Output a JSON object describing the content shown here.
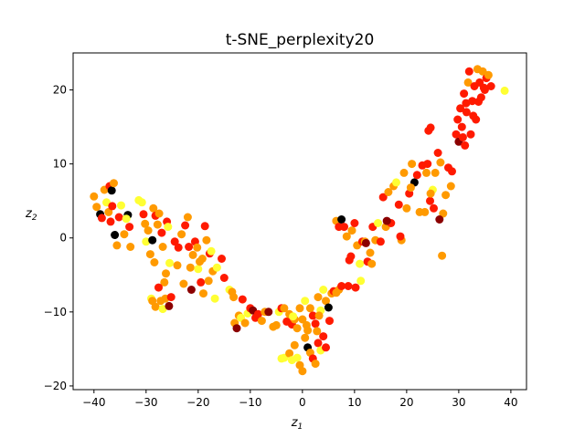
{
  "chart_data": {
    "type": "scatter",
    "title": "t-SNE_perplexity20",
    "xlabel": "z",
    "xlabel_sub": "1",
    "ylabel": "z",
    "ylabel_sub": "2",
    "xlim": [
      -44,
      43
    ],
    "ylim": [
      -20.5,
      25
    ],
    "xticks": [
      -40,
      -30,
      -20,
      -10,
      0,
      10,
      20,
      30,
      40
    ],
    "yticks": [
      -20,
      -10,
      0,
      10,
      20
    ],
    "grid": false,
    "colormap": "hot",
    "palette": {
      "black": "#000000",
      "darkred": "#8b0000",
      "red": "#ff1a00",
      "orange": "#ff9a00",
      "yellow": "#ffff33"
    },
    "points": [
      [
        -40,
        5.6,
        "orange"
      ],
      [
        -39.5,
        4.2,
        "orange"
      ],
      [
        -38.8,
        3.2,
        "black"
      ],
      [
        -38.5,
        2.7,
        "red"
      ],
      [
        -38,
        6.5,
        "orange"
      ],
      [
        -37.6,
        4.8,
        "yellow"
      ],
      [
        -37.2,
        3.5,
        "orange"
      ],
      [
        -37,
        7,
        "red"
      ],
      [
        -36.6,
        6.4,
        "black"
      ],
      [
        -36.8,
        2.2,
        "red"
      ],
      [
        -36.5,
        4.3,
        "red"
      ],
      [
        -36.2,
        7.4,
        "orange"
      ],
      [
        -36,
        0.4,
        "black"
      ],
      [
        -35.6,
        -1,
        "orange"
      ],
      [
        -35.2,
        2.8,
        "red"
      ],
      [
        -34.8,
        4.4,
        "yellow"
      ],
      [
        -34.2,
        0.5,
        "orange"
      ],
      [
        -33.5,
        3.1,
        "black"
      ],
      [
        -33.2,
        1.5,
        "red"
      ],
      [
        -33,
        -1.2,
        "orange"
      ],
      [
        -31.4,
        5.1,
        "yellow"
      ],
      [
        -30.8,
        4.8,
        "yellow"
      ],
      [
        -30.5,
        3.2,
        "red"
      ],
      [
        -30.2,
        1.9,
        "orange"
      ],
      [
        -30,
        -0.5,
        "yellow"
      ],
      [
        -29.6,
        1,
        "orange"
      ],
      [
        -29.2,
        -2.2,
        "orange"
      ],
      [
        -28.8,
        -0.3,
        "black"
      ],
      [
        -28.6,
        4,
        "orange"
      ],
      [
        -28.4,
        -3.3,
        "orange"
      ],
      [
        -28.2,
        3,
        "red"
      ],
      [
        -27.8,
        1.8,
        "orange"
      ],
      [
        -27.5,
        3.3,
        "orange"
      ],
      [
        -27,
        0.7,
        "red"
      ],
      [
        -26.8,
        -1.2,
        "orange"
      ],
      [
        -26.5,
        -6,
        "orange"
      ],
      [
        -26.2,
        -4.8,
        "orange"
      ],
      [
        -26,
        2.2,
        "red"
      ],
      [
        -25.8,
        1.5,
        "yellow"
      ],
      [
        -25.5,
        -3.4,
        "yellow"
      ],
      [
        -29,
        -8.2,
        "yellow"
      ],
      [
        -28.8,
        -8.5,
        "orange"
      ],
      [
        -28.2,
        -9.3,
        "orange"
      ],
      [
        -27.6,
        -6.7,
        "red"
      ],
      [
        -27.2,
        -8.5,
        "orange"
      ],
      [
        -26.8,
        -9.6,
        "yellow"
      ],
      [
        -26.3,
        -8.2,
        "orange"
      ],
      [
        -25.6,
        -9.2,
        "darkred"
      ],
      [
        -25.2,
        -8,
        "red"
      ],
      [
        -24.5,
        -0.5,
        "red"
      ],
      [
        -24,
        -3.7,
        "orange"
      ],
      [
        -23.8,
        -1.3,
        "red"
      ],
      [
        -23.2,
        0.5,
        "orange"
      ],
      [
        -22.5,
        1.7,
        "red"
      ],
      [
        -22,
        2.8,
        "orange"
      ],
      [
        -21.8,
        -1.2,
        "red"
      ],
      [
        -21.5,
        -4,
        "orange"
      ],
      [
        -21.3,
        -7,
        "darkred"
      ],
      [
        -21,
        -2.3,
        "orange"
      ],
      [
        -20.6,
        -0.5,
        "red"
      ],
      [
        -20.2,
        -1.3,
        "orange"
      ],
      [
        -20,
        -4.2,
        "yellow"
      ],
      [
        -19.7,
        -3.2,
        "orange"
      ],
      [
        -19.5,
        -6,
        "red"
      ],
      [
        -19.2,
        -2.8,
        "orange"
      ],
      [
        -19,
        -7.5,
        "orange"
      ],
      [
        -18.7,
        1.6,
        "red"
      ],
      [
        -18.4,
        -0.3,
        "orange"
      ],
      [
        -18,
        -5.8,
        "orange"
      ],
      [
        -17.8,
        -2.1,
        "red"
      ],
      [
        -17.5,
        -1.8,
        "yellow"
      ],
      [
        -17.2,
        -4.5,
        "orange"
      ],
      [
        -16.8,
        -8.2,
        "yellow"
      ],
      [
        -16.4,
        -4,
        "yellow"
      ],
      [
        -15.5,
        -2.8,
        "red"
      ],
      [
        -15,
        -5.4,
        "red"
      ],
      [
        -14,
        -7,
        "yellow"
      ],
      [
        -13.5,
        -7.3,
        "orange"
      ],
      [
        -13,
        -11.5,
        "orange"
      ],
      [
        -12.6,
        -12.2,
        "darkred"
      ],
      [
        -12.2,
        -10.5,
        "orange"
      ],
      [
        -11.8,
        -10.8,
        "yellow"
      ],
      [
        -11.5,
        -8.3,
        "red"
      ],
      [
        -11,
        -11.5,
        "orange"
      ],
      [
        -10.5,
        -10.2,
        "yellow"
      ],
      [
        -10,
        -9.5,
        "red"
      ],
      [
        -9.5,
        -9.8,
        "darkred"
      ],
      [
        -9,
        -10.8,
        "red"
      ],
      [
        -8.5,
        -10.3,
        "red"
      ],
      [
        -7.2,
        -10,
        "orange"
      ],
      [
        -6.5,
        -10,
        "darkred"
      ],
      [
        -5.6,
        -12,
        "orange"
      ],
      [
        -5,
        -11.8,
        "orange"
      ],
      [
        -4.5,
        -10,
        "yellow"
      ],
      [
        -4,
        -9.5,
        "red"
      ],
      [
        -3.5,
        -9.5,
        "orange"
      ],
      [
        -3,
        -11.3,
        "red"
      ],
      [
        -2.5,
        -10.3,
        "orange"
      ],
      [
        -2,
        -11.7,
        "red"
      ],
      [
        -1.5,
        -11,
        "orange"
      ],
      [
        -1,
        -12.2,
        "orange"
      ],
      [
        -0.5,
        -9.5,
        "orange"
      ],
      [
        0,
        -11,
        "orange"
      ],
      [
        0.5,
        -8.5,
        "yellow"
      ],
      [
        1,
        -12.5,
        "orange"
      ],
      [
        1.5,
        -9.5,
        "orange"
      ],
      [
        2,
        -10.5,
        "red"
      ],
      [
        2.5,
        -11.6,
        "red"
      ],
      [
        3,
        -8,
        "orange"
      ],
      [
        3.5,
        -9.8,
        "yellow"
      ],
      [
        4,
        -7,
        "yellow"
      ],
      [
        4.5,
        -8.5,
        "orange"
      ],
      [
        5,
        -9.4,
        "black"
      ],
      [
        5.6,
        -7.5,
        "orange"
      ],
      [
        6,
        -7.2,
        "red"
      ],
      [
        6.5,
        -7.4,
        "orange"
      ],
      [
        7,
        -7,
        "orange"
      ],
      [
        7.5,
        -6.5,
        "red"
      ],
      [
        -4,
        -16.3,
        "yellow"
      ],
      [
        -3.5,
        -16.2,
        "yellow"
      ],
      [
        -2.5,
        -15.6,
        "orange"
      ],
      [
        -2,
        -16.5,
        "yellow"
      ],
      [
        -1.5,
        -14.5,
        "orange"
      ],
      [
        -1,
        -16.2,
        "yellow"
      ],
      [
        -0.5,
        -17.2,
        "orange"
      ],
      [
        0,
        -18,
        "orange"
      ],
      [
        0.5,
        -13.5,
        "orange"
      ],
      [
        1,
        -14.8,
        "black"
      ],
      [
        1.5,
        -15.5,
        "orange"
      ],
      [
        2,
        -16.3,
        "red"
      ],
      [
        2.5,
        -17,
        "orange"
      ],
      [
        3,
        -14.2,
        "red"
      ],
      [
        3.5,
        -15.2,
        "yellow"
      ],
      [
        4,
        -13.3,
        "red"
      ],
      [
        4.5,
        -14.8,
        "red"
      ],
      [
        0.8,
        -11.8,
        "orange"
      ],
      [
        3.2,
        -10.5,
        "orange"
      ],
      [
        5.2,
        -11.2,
        "red"
      ],
      [
        -1.8,
        -10.6,
        "yellow"
      ],
      [
        2.8,
        -12.6,
        "orange"
      ],
      [
        6.5,
        2.3,
        "orange"
      ],
      [
        7,
        1.5,
        "red"
      ],
      [
        7.5,
        2.5,
        "black"
      ],
      [
        8,
        1.5,
        "red"
      ],
      [
        8.5,
        0.2,
        "orange"
      ],
      [
        9,
        -3,
        "red"
      ],
      [
        9.5,
        1,
        "orange"
      ],
      [
        10,
        2,
        "red"
      ],
      [
        10.5,
        -1,
        "orange"
      ],
      [
        11,
        -3.5,
        "yellow"
      ],
      [
        11.5,
        -0.5,
        "red"
      ],
      [
        12,
        -0.5,
        "orange"
      ],
      [
        12.5,
        -3.2,
        "red"
      ],
      [
        13,
        -2,
        "orange"
      ],
      [
        13.5,
        1.5,
        "red"
      ],
      [
        14,
        -0.3,
        "orange"
      ],
      [
        14.5,
        2,
        "yellow"
      ],
      [
        15,
        -0.5,
        "red"
      ],
      [
        15.5,
        5.5,
        "red"
      ],
      [
        16,
        1.5,
        "orange"
      ],
      [
        16.5,
        6.2,
        "orange"
      ],
      [
        17,
        2,
        "red"
      ],
      [
        17.5,
        7,
        "orange"
      ],
      [
        18,
        7.5,
        "yellow"
      ],
      [
        18.5,
        4.5,
        "red"
      ],
      [
        19,
        -0.3,
        "orange"
      ],
      [
        19.5,
        8.8,
        "orange"
      ],
      [
        20,
        4,
        "orange"
      ],
      [
        20.5,
        6,
        "red"
      ],
      [
        21,
        10,
        "orange"
      ],
      [
        21.5,
        7.5,
        "black"
      ],
      [
        22,
        8.5,
        "red"
      ],
      [
        22.5,
        3.5,
        "orange"
      ],
      [
        23,
        9.8,
        "red"
      ],
      [
        23.5,
        3.5,
        "orange"
      ],
      [
        24,
        10,
        "red"
      ],
      [
        24.5,
        5,
        "red"
      ],
      [
        25,
        6.5,
        "yellow"
      ],
      [
        25.5,
        8.8,
        "orange"
      ],
      [
        26,
        11.5,
        "red"
      ],
      [
        26.5,
        10.2,
        "orange"
      ],
      [
        27,
        3.3,
        "orange"
      ],
      [
        27.5,
        5.8,
        "orange"
      ],
      [
        28,
        9.5,
        "red"
      ],
      [
        28.5,
        7,
        "orange"
      ],
      [
        28.7,
        9,
        "red"
      ],
      [
        24.2,
        14.5,
        "red"
      ],
      [
        24.6,
        14.9,
        "red"
      ],
      [
        8.8,
        -6.5,
        "red"
      ],
      [
        10.2,
        -6.7,
        "red"
      ],
      [
        11.2,
        -5.8,
        "yellow"
      ],
      [
        13.3,
        -3.5,
        "orange"
      ],
      [
        9.3,
        -2.5,
        "red"
      ],
      [
        12.2,
        -0.7,
        "darkred"
      ],
      [
        16.2,
        2.3,
        "darkred"
      ],
      [
        18.8,
        0.2,
        "red"
      ],
      [
        24.6,
        6,
        "orange"
      ],
      [
        25.2,
        4,
        "red"
      ],
      [
        26.3,
        2.5,
        "darkred"
      ],
      [
        23.8,
        8.8,
        "orange"
      ],
      [
        29.5,
        14,
        "red"
      ],
      [
        29.8,
        16,
        "red"
      ],
      [
        30,
        13,
        "darkred"
      ],
      [
        30.3,
        17.5,
        "red"
      ],
      [
        30.6,
        15,
        "red"
      ],
      [
        31,
        19.5,
        "red"
      ],
      [
        31.2,
        12.5,
        "red"
      ],
      [
        31.5,
        17,
        "red"
      ],
      [
        31.8,
        21,
        "orange"
      ],
      [
        32,
        22.5,
        "red"
      ],
      [
        32.3,
        14,
        "red"
      ],
      [
        32.6,
        18.5,
        "red"
      ],
      [
        33,
        20.5,
        "red"
      ],
      [
        33.3,
        16,
        "red"
      ],
      [
        33.6,
        22.8,
        "orange"
      ],
      [
        34,
        21,
        "red"
      ],
      [
        34.3,
        19,
        "red"
      ],
      [
        34.6,
        22.5,
        "orange"
      ],
      [
        35,
        20,
        "red"
      ],
      [
        35.3,
        21.6,
        "red"
      ],
      [
        35.7,
        22,
        "orange"
      ],
      [
        36.2,
        20.5,
        "red"
      ],
      [
        38.8,
        19.9,
        "yellow"
      ],
      [
        32.8,
        16.5,
        "red"
      ],
      [
        31.4,
        18.2,
        "red"
      ],
      [
        33.8,
        18.4,
        "red"
      ],
      [
        30.8,
        13.6,
        "red"
      ],
      [
        34.8,
        20.3,
        "red"
      ],
      [
        -33.8,
        2.6,
        "yellow"
      ],
      [
        -22.8,
        -6.2,
        "orange"
      ],
      [
        -13.2,
        -8,
        "orange"
      ],
      [
        -7.8,
        -11.2,
        "orange"
      ],
      [
        20.8,
        6.8,
        "orange"
      ],
      [
        26.8,
        -2.4,
        "orange"
      ]
    ]
  }
}
